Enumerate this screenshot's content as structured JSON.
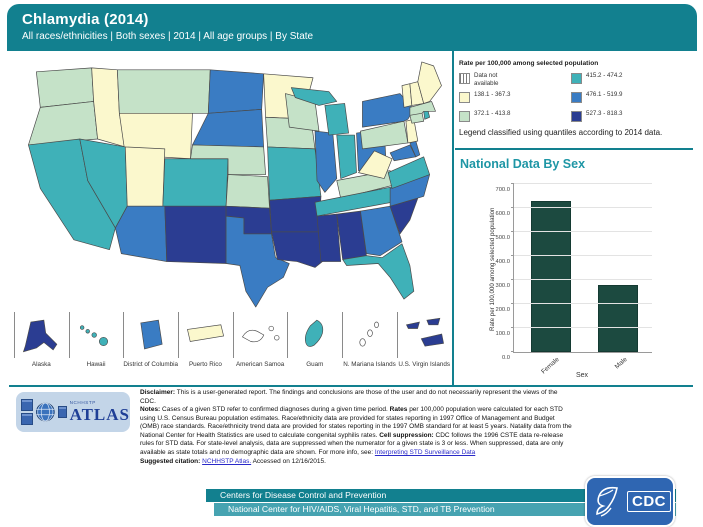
{
  "header": {
    "title": "Chlamydia (2014)",
    "subtitle": "All races/ethnicities | Both sexes | 2014 | All age groups | By State"
  },
  "legend": {
    "title": "Rate per 100,000 among selected population",
    "note": "Legend classified using quantiles according to 2014 data.",
    "items": [
      {
        "key": "na",
        "label": "Data not available",
        "swatch": "hatch",
        "color": "#ffffff"
      },
      {
        "key": "q1",
        "label": "138.1 - 367.3",
        "color": "#fbf8cd"
      },
      {
        "key": "q2",
        "label": "372.1 - 413.8",
        "color": "#c5e2c8"
      },
      {
        "key": "q3",
        "label": "415.2 - 474.2",
        "color": "#3fb1b8"
      },
      {
        "key": "q4",
        "label": "476.1 - 519.9",
        "color": "#3a7cc3"
      },
      {
        "key": "q5",
        "label": "527.3 - 818.3",
        "color": "#2b3d92"
      }
    ]
  },
  "map": {
    "state_classes": {
      "WA": "q2",
      "OR": "q2",
      "CA": "q3",
      "NV": "q3",
      "ID": "q1",
      "MT": "q2",
      "WY": "q1",
      "UT": "q1",
      "CO": "q3",
      "AZ": "q4",
      "NM": "q5",
      "ND": "q4",
      "SD": "q4",
      "NE": "q2",
      "KS": "q2",
      "OK": "q5",
      "TX": "q4",
      "MN": "q1",
      "IA": "q2",
      "MO": "q3",
      "AR": "q5",
      "LA": "q5",
      "WI": "q2",
      "IL": "q4",
      "MI": "q3",
      "IN": "q3",
      "OH": "q4",
      "KY": "q2",
      "TN": "q3",
      "MS": "q5",
      "AL": "q5",
      "GA": "q4",
      "FL": "q3",
      "SC": "q5",
      "NC": "q4",
      "VA": "q3",
      "WV": "q1",
      "PA": "q2",
      "NY": "q4",
      "MD": "q4",
      "DE": "q4",
      "NJ": "q1",
      "CT": "q2",
      "RI": "q3",
      "MA": "q2",
      "VT": "q1",
      "NH": "q1",
      "ME": "q1",
      "AK": "q5",
      "HI": "q3",
      "DC": "q4",
      "PR": "q1",
      "AS": "na",
      "GU": "q3",
      "MP": "na",
      "VI": "q5"
    },
    "insets": [
      {
        "label": "Alaska"
      },
      {
        "label": "Hawaii"
      },
      {
        "label": "District of Columbia"
      },
      {
        "label": "Puerto Rico"
      },
      {
        "label": "American Samoa"
      },
      {
        "label": "Guam"
      },
      {
        "label": "N. Mariana Islands"
      },
      {
        "label": "U.S. Virgin Islands"
      }
    ]
  },
  "chart_data": {
    "type": "bar",
    "title": "National Data By Sex",
    "categories": [
      "Female",
      "Male"
    ],
    "values": [
      627.2,
      278.4
    ],
    "xlabel": "Sex",
    "ylabel": "Rate per 100,000 among selected population",
    "ylim": [
      0,
      700
    ],
    "yticks": [
      "0.0",
      "100.0",
      "200.0",
      "300.0",
      "400.0",
      "500.0",
      "600.0",
      "700.0"
    ],
    "bar_color": "#1c4a40",
    "grid": true,
    "legend_position": "none"
  },
  "atlas_logo": {
    "small": "NCHHSTP",
    "large": "ATLAS"
  },
  "disclaimer": {
    "segments": [
      {
        "text": "Disclaimer:",
        "bold": true
      },
      {
        "text": " This is a user-generated report. The findings and conclusions are those of the user and do not necessarily represent the views of the CDC.\n"
      },
      {
        "text": "Notes:",
        "bold": true
      },
      {
        "text": " Cases of a given STD refer to confirmed diagnoses during a given time period. "
      },
      {
        "text": "Rates",
        "bold": true
      },
      {
        "text": " per 100,000 population were calculated for each STD using U.S. Census Bureau population estimates. Race/ethnicity data are provided for states reporting in 1997 Office of Management and Budget (OMB) race standards. Race/ethnicity trend data are provided for states reporting in the 1997 OMB standard for at least 5 years. Natality data from the National Center for Health Statistics are used to calculate congenital syphilis rates. "
      },
      {
        "text": "Cell suppression:",
        "bold": true
      },
      {
        "text": " CDC follows the 1996 CSTE data re-release rules for STD data. For state-level analysis, data are suppressed when the numerator for a given state is 3 or less. When suppressed, data are only available as state totals and no demographic data are shown. For more info, see: "
      },
      {
        "text": "Interpreting STD Surveillance Data",
        "link": true
      },
      {
        "text": "\n"
      },
      {
        "text": "Suggested citation:",
        "bold": true
      },
      {
        "text": " "
      },
      {
        "text": "NCHHSTP Atlas.",
        "link": true
      },
      {
        "text": " Accessed on 12/16/2015."
      }
    ]
  },
  "footer": {
    "line1": "Centers for Disease Control and Prevention",
    "line2": "National Center for HIV/AIDS, Viral Hepatitis, STD, and TB Prevention",
    "cdc_word": "CDC"
  }
}
